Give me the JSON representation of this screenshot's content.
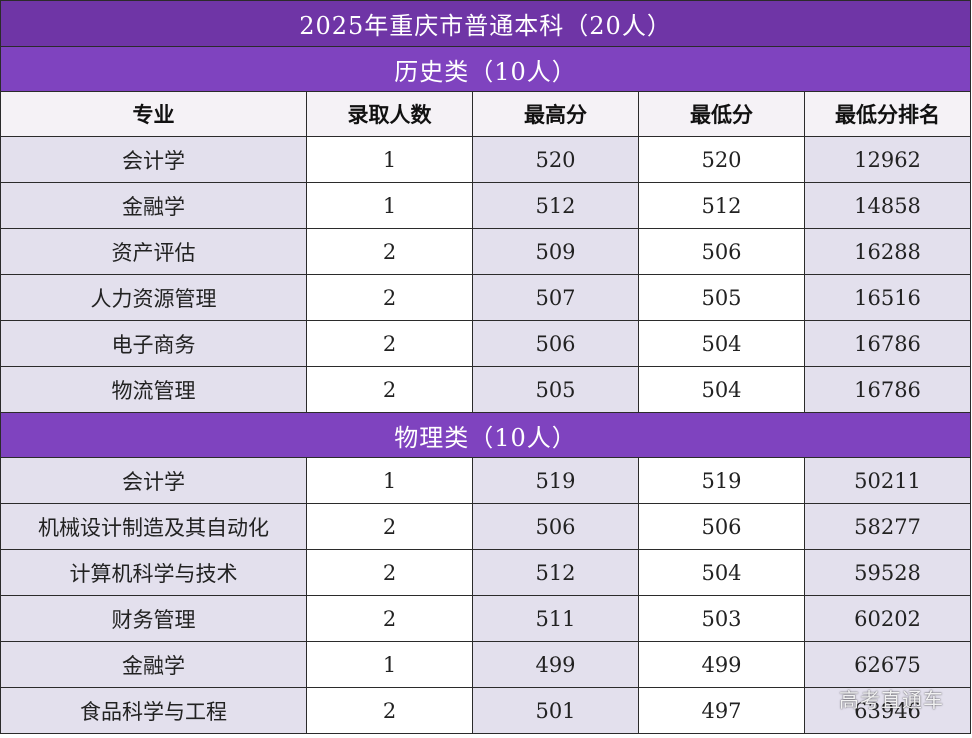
{
  "title": "2025年重庆市普通本科（20人）",
  "headers": [
    "专业",
    "录取人数",
    "最高分",
    "最低分",
    "最低分排名"
  ],
  "sections": [
    {
      "title": "历史类（10人）",
      "rows": [
        [
          "会计学",
          "1",
          "520",
          "520",
          "12962"
        ],
        [
          "金融学",
          "1",
          "512",
          "512",
          "14858"
        ],
        [
          "资产评估",
          "2",
          "509",
          "506",
          "16288"
        ],
        [
          "人力资源管理",
          "2",
          "507",
          "505",
          "16516"
        ],
        [
          "电子商务",
          "2",
          "506",
          "504",
          "16786"
        ],
        [
          "物流管理",
          "2",
          "505",
          "504",
          "16786"
        ]
      ]
    },
    {
      "title": "物理类（10人）",
      "rows": [
        [
          "会计学",
          "1",
          "519",
          "519",
          "50211"
        ],
        [
          "机械设计制造及其自动化",
          "2",
          "506",
          "506",
          "58277"
        ],
        [
          "计算机科学与技术",
          "2",
          "512",
          "504",
          "59528"
        ],
        [
          "财务管理",
          "2",
          "511",
          "503",
          "60202"
        ],
        [
          "金融学",
          "1",
          "499",
          "499",
          "62675"
        ],
        [
          "食品科学与工程",
          "2",
          "501",
          "497",
          "63946"
        ]
      ]
    }
  ],
  "watermark": "高考直通车",
  "colors": {
    "title_bg": "#6f35a6",
    "section_bg": "#7f43bf",
    "major_cell_bg": "#e3e0ed"
  }
}
